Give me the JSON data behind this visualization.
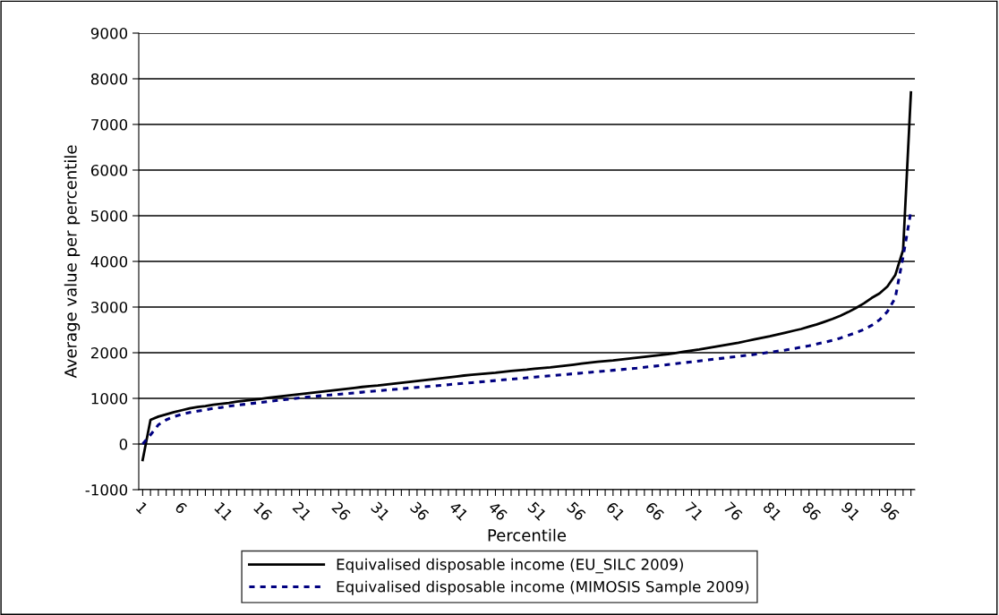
{
  "chart_data": {
    "type": "line",
    "xlabel": "Percentile",
    "ylabel": "Average value per percentile",
    "categories": [
      "1",
      null,
      null,
      null,
      null,
      "6",
      null,
      null,
      null,
      null,
      "11",
      null,
      null,
      null,
      null,
      "16",
      null,
      null,
      null,
      null,
      "21",
      null,
      null,
      null,
      null,
      "26",
      null,
      null,
      null,
      null,
      "31",
      null,
      null,
      null,
      null,
      "36",
      null,
      null,
      null,
      null,
      "41",
      null,
      null,
      null,
      null,
      "46",
      null,
      null,
      null,
      null,
      "51",
      null,
      null,
      null,
      null,
      "56",
      null,
      null,
      null,
      null,
      "61",
      null,
      null,
      null,
      null,
      "66",
      null,
      null,
      null,
      null,
      "71",
      null,
      null,
      null,
      null,
      "76",
      null,
      null,
      null,
      null,
      "81",
      null,
      null,
      null,
      null,
      "86",
      null,
      null,
      null,
      null,
      "91",
      null,
      null,
      null,
      null,
      "96",
      null,
      null,
      null
    ],
    "series": [
      {
        "name": "Equivalised disposable income (EU_SILC 2009)",
        "color": "#000000",
        "line_style": "solid",
        "values": [
          -350,
          530,
          600,
          650,
          700,
          740,
          780,
          810,
          830,
          860,
          880,
          900,
          930,
          950,
          970,
          990,
          1010,
          1030,
          1050,
          1070,
          1090,
          1110,
          1130,
          1150,
          1170,
          1190,
          1210,
          1230,
          1250,
          1265,
          1280,
          1300,
          1320,
          1340,
          1360,
          1380,
          1400,
          1420,
          1440,
          1460,
          1480,
          1500,
          1515,
          1530,
          1545,
          1560,
          1580,
          1600,
          1615,
          1630,
          1650,
          1665,
          1680,
          1700,
          1720,
          1740,
          1760,
          1780,
          1800,
          1815,
          1830,
          1850,
          1870,
          1890,
          1910,
          1930,
          1950,
          1970,
          1995,
          2020,
          2045,
          2070,
          2100,
          2130,
          2160,
          2190,
          2220,
          2255,
          2290,
          2325,
          2360,
          2400,
          2440,
          2480,
          2520,
          2570,
          2620,
          2680,
          2740,
          2810,
          2890,
          2980,
          3080,
          3200,
          3300,
          3450,
          3700,
          4250,
          7700
        ]
      },
      {
        "name": "Equivalised disposable income (MIMOSIS Sample 2009)",
        "color": "#000080",
        "line_style": "dotted",
        "values": [
          0,
          200,
          420,
          530,
          600,
          650,
          690,
          720,
          750,
          780,
          800,
          830,
          850,
          870,
          890,
          910,
          930,
          950,
          970,
          990,
          1010,
          1030,
          1045,
          1060,
          1075,
          1090,
          1105,
          1120,
          1135,
          1150,
          1165,
          1180,
          1195,
          1210,
          1225,
          1240,
          1255,
          1270,
          1285,
          1300,
          1315,
          1330,
          1345,
          1360,
          1375,
          1390,
          1405,
          1420,
          1435,
          1450,
          1465,
          1480,
          1495,
          1510,
          1525,
          1540,
          1555,
          1570,
          1585,
          1600,
          1615,
          1630,
          1645,
          1660,
          1680,
          1700,
          1720,
          1740,
          1760,
          1780,
          1800,
          1820,
          1840,
          1860,
          1880,
          1900,
          1920,
          1940,
          1960,
          1985,
          2010,
          2035,
          2060,
          2090,
          2120,
          2150,
          2190,
          2230,
          2270,
          2320,
          2380,
          2440,
          2510,
          2600,
          2720,
          2900,
          3200,
          4100,
          5100
        ]
      }
    ],
    "ylim": [
      -1000,
      9000
    ],
    "yticks": [
      -1000,
      0,
      1000,
      2000,
      3000,
      4000,
      5000,
      6000,
      7000,
      8000,
      9000
    ],
    "grid": "y",
    "legend": "bottom",
    "marker": "none"
  }
}
